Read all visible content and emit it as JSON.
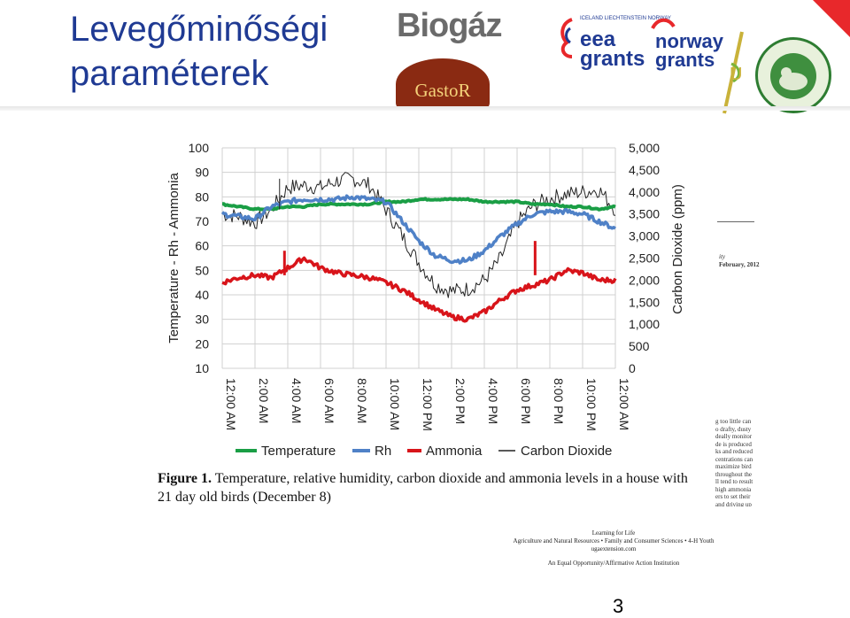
{
  "slide": {
    "title_line1": "Levegőminőségi",
    "title_line2": "paraméterek",
    "page_number": "3",
    "logos": {
      "biogaz": "Biogáz",
      "gastor": "GastoR",
      "eea_small": "ICELAND LIECHTENSTEIN NORWAY",
      "eea": "eea grants",
      "norway": "norway grants"
    }
  },
  "caption": {
    "label": "Figure 1.",
    "text": "Temperature, relative humidity, carbon dioxide and ammonia levels in a house with 21 day old birds (December 8)"
  },
  "paper_bits": {
    "right_lines": [
      "g too little can",
      "o drafty, dusty",
      "deally monitor",
      "de is produced",
      "ks and reduced",
      "centrations can",
      "maximize bird",
      "throughout the",
      "ll tend to result",
      "high ammonia",
      "ers to set their",
      "and driving up"
    ],
    "side_a": "ity",
    "side_b": "February, 2012",
    "footer": [
      "Learning for Life",
      "Agriculture and Natural Resources • Family and Consumer Sciences • 4-H Youth",
      "ugaextension.com",
      "An Equal Opportunity/Affirmative Action Institution"
    ]
  },
  "colors": {
    "title": "#1f3a93",
    "temperature": "#1a9e45",
    "rh": "#4f81c7",
    "ammonia": "#d8141a",
    "co2": "#222222"
  },
  "chart_data": {
    "type": "line",
    "title": "",
    "ylabel_left": "Temperature - Rh - Ammonia",
    "ylabel_right": "Carbon Dioxide (ppm)",
    "ylim_left": [
      10,
      100
    ],
    "ylim_right": [
      0,
      5000
    ],
    "yticks_left": [
      "100",
      "90",
      "80",
      "70",
      "60",
      "50",
      "40",
      "30",
      "20",
      "10"
    ],
    "yticks_right": [
      "5,000",
      "4,500",
      "4,000",
      "3,500",
      "3,000",
      "2,500",
      "2,000",
      "1,500",
      "1,000",
      "500",
      "0"
    ],
    "x_ticks": [
      "12:00 AM",
      "2:00 AM",
      "4:00 AM",
      "6:00 AM",
      "8:00 AM",
      "10:00 AM",
      "12:00 PM",
      "2:00 PM",
      "4:00 PM",
      "6:00 PM",
      "8:00 PM",
      "10:00 PM",
      "12:00 AM"
    ],
    "x_hours": [
      0,
      1,
      2,
      3,
      4,
      5,
      6,
      7,
      8,
      9,
      10,
      11,
      12,
      13,
      14,
      15,
      16,
      17,
      18,
      19,
      20,
      21,
      22,
      23,
      24
    ],
    "grid": true,
    "legend_position": "bottom",
    "series": [
      {
        "name": "Temperature",
        "axis": "left",
        "values": [
          77,
          76,
          75,
          75,
          76,
          76,
          77,
          77,
          77,
          77,
          78,
          78,
          79,
          79,
          79,
          79,
          78,
          78,
          78,
          77,
          77,
          76,
          76,
          75,
          76
        ]
      },
      {
        "name": "Rh",
        "axis": "left",
        "values": [
          73,
          72,
          71,
          76,
          78,
          79,
          79,
          79,
          80,
          79,
          78,
          70,
          62,
          56,
          54,
          54,
          58,
          64,
          69,
          73,
          74,
          74,
          73,
          70,
          67
        ]
      },
      {
        "name": "Ammonia",
        "axis": "left",
        "values": [
          45,
          47,
          48,
          47,
          51,
          55,
          51,
          49,
          48,
          47,
          45,
          42,
          38,
          34,
          31,
          30,
          33,
          38,
          42,
          44,
          46,
          50,
          49,
          46,
          46
        ]
      },
      {
        "name": "Carbon Dioxide",
        "axis": "right",
        "values": [
          3500,
          3450,
          3300,
          3600,
          4100,
          4150,
          4100,
          4250,
          4300,
          4150,
          3600,
          3000,
          2400,
          1900,
          1750,
          1800,
          2000,
          2500,
          3300,
          3700,
          3850,
          3950,
          4000,
          4050,
          3600
        ]
      }
    ],
    "annotations": [
      {
        "series": "Ammonia",
        "x": 3.8,
        "y": 58
      },
      {
        "series": "Ammonia",
        "x": 19.1,
        "y": 62
      },
      {
        "series": "Carbon Dioxide",
        "x": 3.5,
        "y": 4300
      }
    ]
  }
}
